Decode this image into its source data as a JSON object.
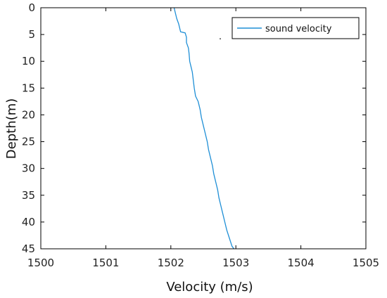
{
  "chart_data": {
    "type": "line",
    "title": "",
    "xlabel": "Velocity (m/s)",
    "ylabel": "Depth(m)",
    "xlim": [
      1500,
      1505
    ],
    "ylim": [
      0,
      45
    ],
    "y_inverted": true,
    "x_ticks": [
      1500,
      1501,
      1502,
      1503,
      1504,
      1505
    ],
    "y_ticks": [
      0,
      5,
      10,
      15,
      20,
      25,
      30,
      35,
      40,
      45
    ],
    "grid": false,
    "legend": {
      "placement": "top-right"
    },
    "series": [
      {
        "name": "sound velocity",
        "color": "#1f8fd6",
        "points": [
          [
            1502.05,
            0
          ],
          [
            1502.07,
            1
          ],
          [
            1502.09,
            2
          ],
          [
            1502.12,
            3
          ],
          [
            1502.14,
            4
          ],
          [
            1502.15,
            4.5
          ],
          [
            1502.22,
            4.7
          ],
          [
            1502.24,
            5.5
          ],
          [
            1502.24,
            6.5
          ],
          [
            1502.27,
            7.5
          ],
          [
            1502.28,
            8.5
          ],
          [
            1502.29,
            10
          ],
          [
            1502.31,
            11
          ],
          [
            1502.33,
            12
          ],
          [
            1502.34,
            13
          ],
          [
            1502.35,
            14
          ],
          [
            1502.36,
            15
          ],
          [
            1502.38,
            16.5
          ],
          [
            1502.42,
            17.5
          ],
          [
            1502.45,
            19
          ],
          [
            1502.47,
            20.5
          ],
          [
            1502.5,
            22
          ],
          [
            1502.53,
            23.5
          ],
          [
            1502.56,
            25
          ],
          [
            1502.58,
            26.5
          ],
          [
            1502.61,
            28
          ],
          [
            1502.64,
            29.5
          ],
          [
            1502.66,
            31
          ],
          [
            1502.69,
            32.5
          ],
          [
            1502.72,
            34
          ],
          [
            1502.74,
            35.5
          ],
          [
            1502.77,
            37
          ],
          [
            1502.8,
            38.5
          ],
          [
            1502.83,
            40
          ],
          [
            1502.86,
            41.5
          ],
          [
            1502.9,
            43
          ],
          [
            1502.94,
            44.5
          ],
          [
            1502.97,
            45
          ]
        ]
      }
    ],
    "stray_point": [
      1502.76,
      5.8
    ]
  }
}
